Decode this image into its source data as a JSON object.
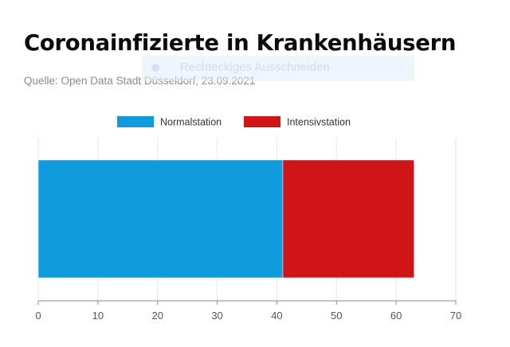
{
  "header": {
    "title": "Coronainfizierte in Krankenhäusern",
    "source": "Quelle: Open Data Stadt Düsseldorf, 23.09.2021"
  },
  "overlay": {
    "label": "Rechteckiges Ausschneiden"
  },
  "chart_data": {
    "type": "bar",
    "orientation": "horizontal",
    "stacked": true,
    "categories": [
      ""
    ],
    "series": [
      {
        "name": "Normalstation",
        "values": [
          41
        ],
        "color": "#0f9bdc"
      },
      {
        "name": "Intensivstation",
        "values": [
          22
        ],
        "color": "#cf1518"
      }
    ],
    "xlim": [
      0,
      70
    ],
    "xticks": [
      0,
      10,
      20,
      30,
      40,
      50,
      60,
      70
    ],
    "grid": true,
    "legend": "top-center",
    "title": "",
    "xlabel": "",
    "ylabel": ""
  }
}
